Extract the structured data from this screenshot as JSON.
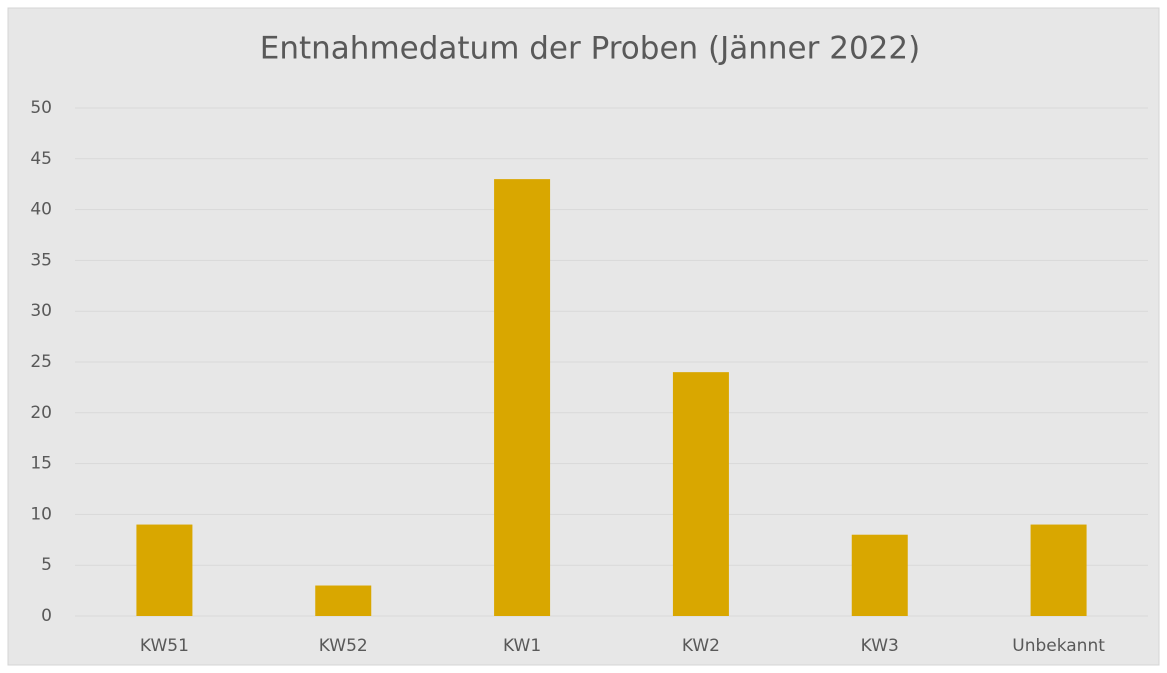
{
  "chart_data": {
    "type": "bar",
    "title": "Entnahmedatum der Proben (Jänner 2022)",
    "categories": [
      "KW51",
      "KW52",
      "KW1",
      "KW2",
      "KW3",
      "Unbekannt"
    ],
    "values": [
      9,
      3,
      43,
      24,
      8,
      9
    ],
    "color": "#d9a700",
    "ylim": [
      0,
      50
    ],
    "yticks": [
      0,
      5,
      10,
      15,
      20,
      25,
      30,
      35,
      40,
      45,
      50
    ],
    "grid": true
  }
}
